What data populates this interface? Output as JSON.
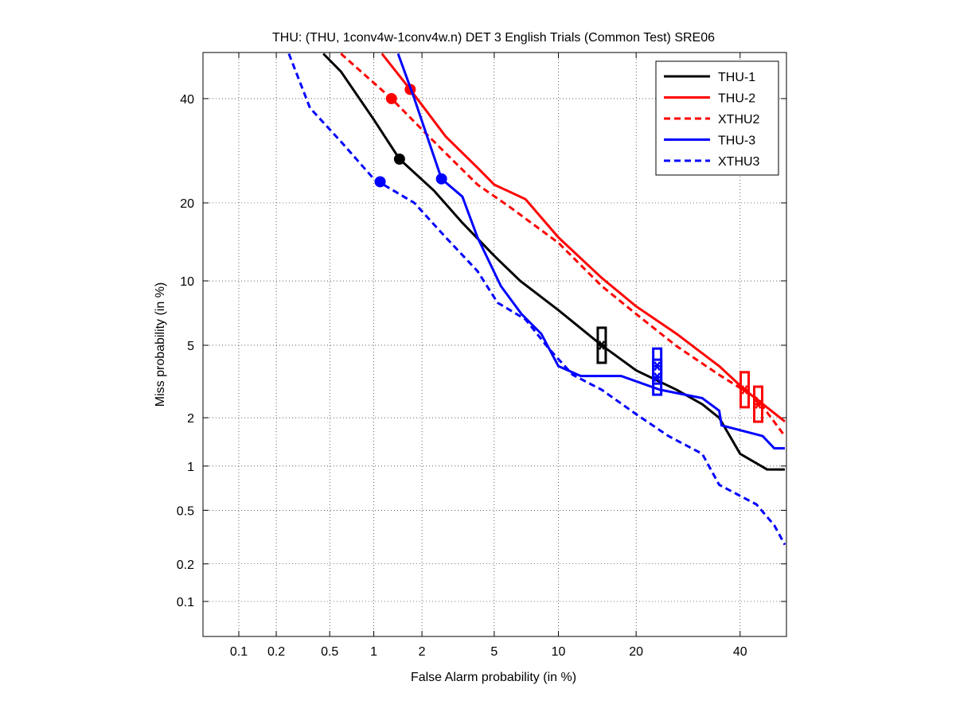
{
  "chart_data": {
    "type": "line",
    "scale": "normal-deviate (DET)",
    "title": "THU: (THU, 1conv4w-1conv4w.n) DET 3 English Trials (Common Test) SRE06",
    "xlabel": "False Alarm probability (in %)",
    "ylabel": "Miss probability (in %)",
    "xlim": [
      0.05,
      50
    ],
    "ylim": [
      0.05,
      50
    ],
    "grid": true,
    "legend_position": "top-right",
    "xticks": [
      0.1,
      0.2,
      0.5,
      1,
      2,
      5,
      10,
      20,
      40
    ],
    "xtick_labels": [
      "0.1",
      "0.2",
      "0.5",
      "1",
      "2",
      "5",
      "10",
      "20",
      "40"
    ],
    "yticks": [
      0.1,
      0.2,
      0.5,
      1,
      2,
      5,
      10,
      20,
      40
    ],
    "ytick_labels": [
      "0.1",
      "0.2",
      "0.5",
      "1",
      "2",
      "5",
      "10",
      "20",
      "40"
    ],
    "series": [
      {
        "name": "THU-1",
        "color": "#000000",
        "dash": false,
        "x": [
          0.45,
          0.6,
          1.0,
          1.46,
          2.35,
          3.4,
          5,
          6.7,
          10,
          15,
          20,
          27,
          32,
          35.5,
          40,
          46,
          50
        ],
        "y": [
          50,
          46,
          35.5,
          27.6,
          22,
          17,
          12.7,
          10,
          7.4,
          5,
          3.7,
          2.9,
          2.4,
          2.0,
          1.2,
          0.95,
          0.95
        ],
        "min_dcf_point": [
          1.46,
          27.6
        ],
        "actual_dcf_point": [
          15,
          5
        ]
      },
      {
        "name": "THU-2",
        "color": "#ff0000",
        "dash": false,
        "x": [
          1.13,
          1.7,
          2.75,
          4.1,
          5,
          7.1,
          10,
          15,
          20,
          27,
          35.5,
          41,
          50
        ],
        "y": [
          50,
          42,
          32,
          26,
          23,
          20.6,
          15,
          10.3,
          7.7,
          5.7,
          3.9,
          2.9,
          1.9
        ],
        "min_dcf_point": [
          1.7,
          42
        ],
        "actual_dcf_point": [
          41,
          2.9
        ]
      },
      {
        "name": "XTHU2",
        "color": "#ff0000",
        "dash": true,
        "x": [
          0.6,
          1.3,
          2.2,
          4.1,
          5.95,
          10,
          15,
          20,
          27,
          35.5,
          43.6,
          50
        ],
        "y": [
          50,
          40,
          32,
          23,
          19.4,
          14.3,
          9.5,
          7.1,
          4.95,
          3.5,
          2.6,
          1.55
        ],
        "min_dcf_point": [
          1.3,
          40
        ],
        "actual_dcf_point": [
          44,
          2.4
        ]
      },
      {
        "name": "THU-3",
        "color": "#0000ff",
        "dash": false,
        "x": [
          1.43,
          1.8,
          2.6,
          3.4,
          4.1,
          5.4,
          6.8,
          8.4,
          10,
          12.4,
          17.7,
          24,
          32,
          35.5,
          36,
          45,
          47.6,
          50
        ],
        "y": [
          50,
          40,
          24,
          21,
          15,
          9.5,
          7.1,
          5.7,
          3.9,
          3.45,
          3.45,
          2.9,
          2.6,
          2.2,
          1.8,
          1.55,
          1.3,
          1.3
        ],
        "min_dcf_point": [
          2.6,
          24
        ],
        "actual_dcf_point": [
          23.5,
          3.9
        ]
      },
      {
        "name": "XTHU3",
        "color": "#0000ff",
        "dash": true,
        "x": [
          0.25,
          0.36,
          0.6,
          1.0,
          1.8,
          2.75,
          4.1,
          5.2,
          7.1,
          9.1,
          11.5,
          15,
          20,
          25.5,
          32,
          35.5,
          43.6,
          47.6,
          50
        ],
        "y": [
          50,
          38,
          31,
          24,
          20,
          15,
          11,
          8,
          6.7,
          4.8,
          3.5,
          2.9,
          2.1,
          1.55,
          1.2,
          0.75,
          0.55,
          0.39,
          0.28
        ],
        "min_dcf_point": [
          1.1,
          23.5
        ],
        "actual_dcf_point": [
          23.5,
          3.4
        ]
      }
    ]
  }
}
